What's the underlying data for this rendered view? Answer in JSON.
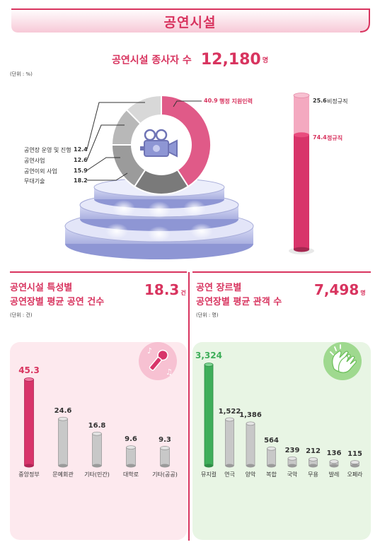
{
  "header": {
    "title": "공연시설"
  },
  "staff": {
    "label": "공연시설 종사자 수",
    "total": "12,180",
    "unit": "명",
    "unit_note": "(단위 : %)"
  },
  "chart_data": [
    {
      "type": "pie",
      "categories": [
        "행정 지원인력",
        "무대기술",
        "공연이외 사업",
        "공연사업",
        "공연장 운영 및 진행"
      ],
      "values": [
        40.9,
        18.2,
        15.9,
        12.6,
        12.4
      ],
      "value_labels": [
        "40.9",
        "18.2",
        "15.9",
        "12.6",
        "12.4"
      ],
      "colors": [
        "#e05a88",
        "#7a7a7a",
        "#9b9b9b",
        "#b8b8b8",
        "#d8d8d8"
      ]
    },
    {
      "type": "bar",
      "stacked": true,
      "categories": [
        "비정규직",
        "정규직"
      ],
      "values": [
        25.6,
        74.4
      ],
      "value_labels": [
        "25.6",
        "74.4"
      ],
      "colors": [
        "#f4a9c0",
        "#d8346a"
      ]
    },
    {
      "type": "bar",
      "title": "공연시설 특성별 공연장별 평균 공연 건수",
      "title_lines": [
        "공연시설 특성별",
        "공연장별 평균 공연 건수"
      ],
      "total": "18.3",
      "total_unit": "건",
      "unit_note": "(단위 : 건)",
      "categories": [
        "중앙정부",
        "문예회관",
        "기타(민간)",
        "대학로",
        "기타(공공)"
      ],
      "values": [
        45.3,
        24.6,
        16.8,
        9.6,
        9.3
      ],
      "value_labels": [
        "45.3",
        "24.6",
        "16.8",
        "9.6",
        "9.3"
      ],
      "ylim": [
        0,
        45.3
      ],
      "highlight_color": "#d8346a",
      "bar_color": "#c8c8c8"
    },
    {
      "type": "bar",
      "title": "공연 장르별 공연장별 평균 관객 수",
      "title_lines": [
        "공연 장르별",
        "공연장별 평균 관객 수"
      ],
      "total": "7,498",
      "total_unit": "명",
      "unit_note": "(단위 : 명)",
      "categories": [
        "뮤지컬",
        "연극",
        "양악",
        "복합",
        "국악",
        "무용",
        "발레",
        "오페라"
      ],
      "values": [
        3324,
        1522,
        1386,
        564,
        239,
        212,
        136,
        115
      ],
      "value_labels": [
        "3,324",
        "1,522",
        "1,386",
        "564",
        "239",
        "212",
        "136",
        "115"
      ],
      "ylim": [
        0,
        3324
      ],
      "highlight_color": "#3fae5a",
      "bar_color": "#c8c8c8"
    }
  ]
}
